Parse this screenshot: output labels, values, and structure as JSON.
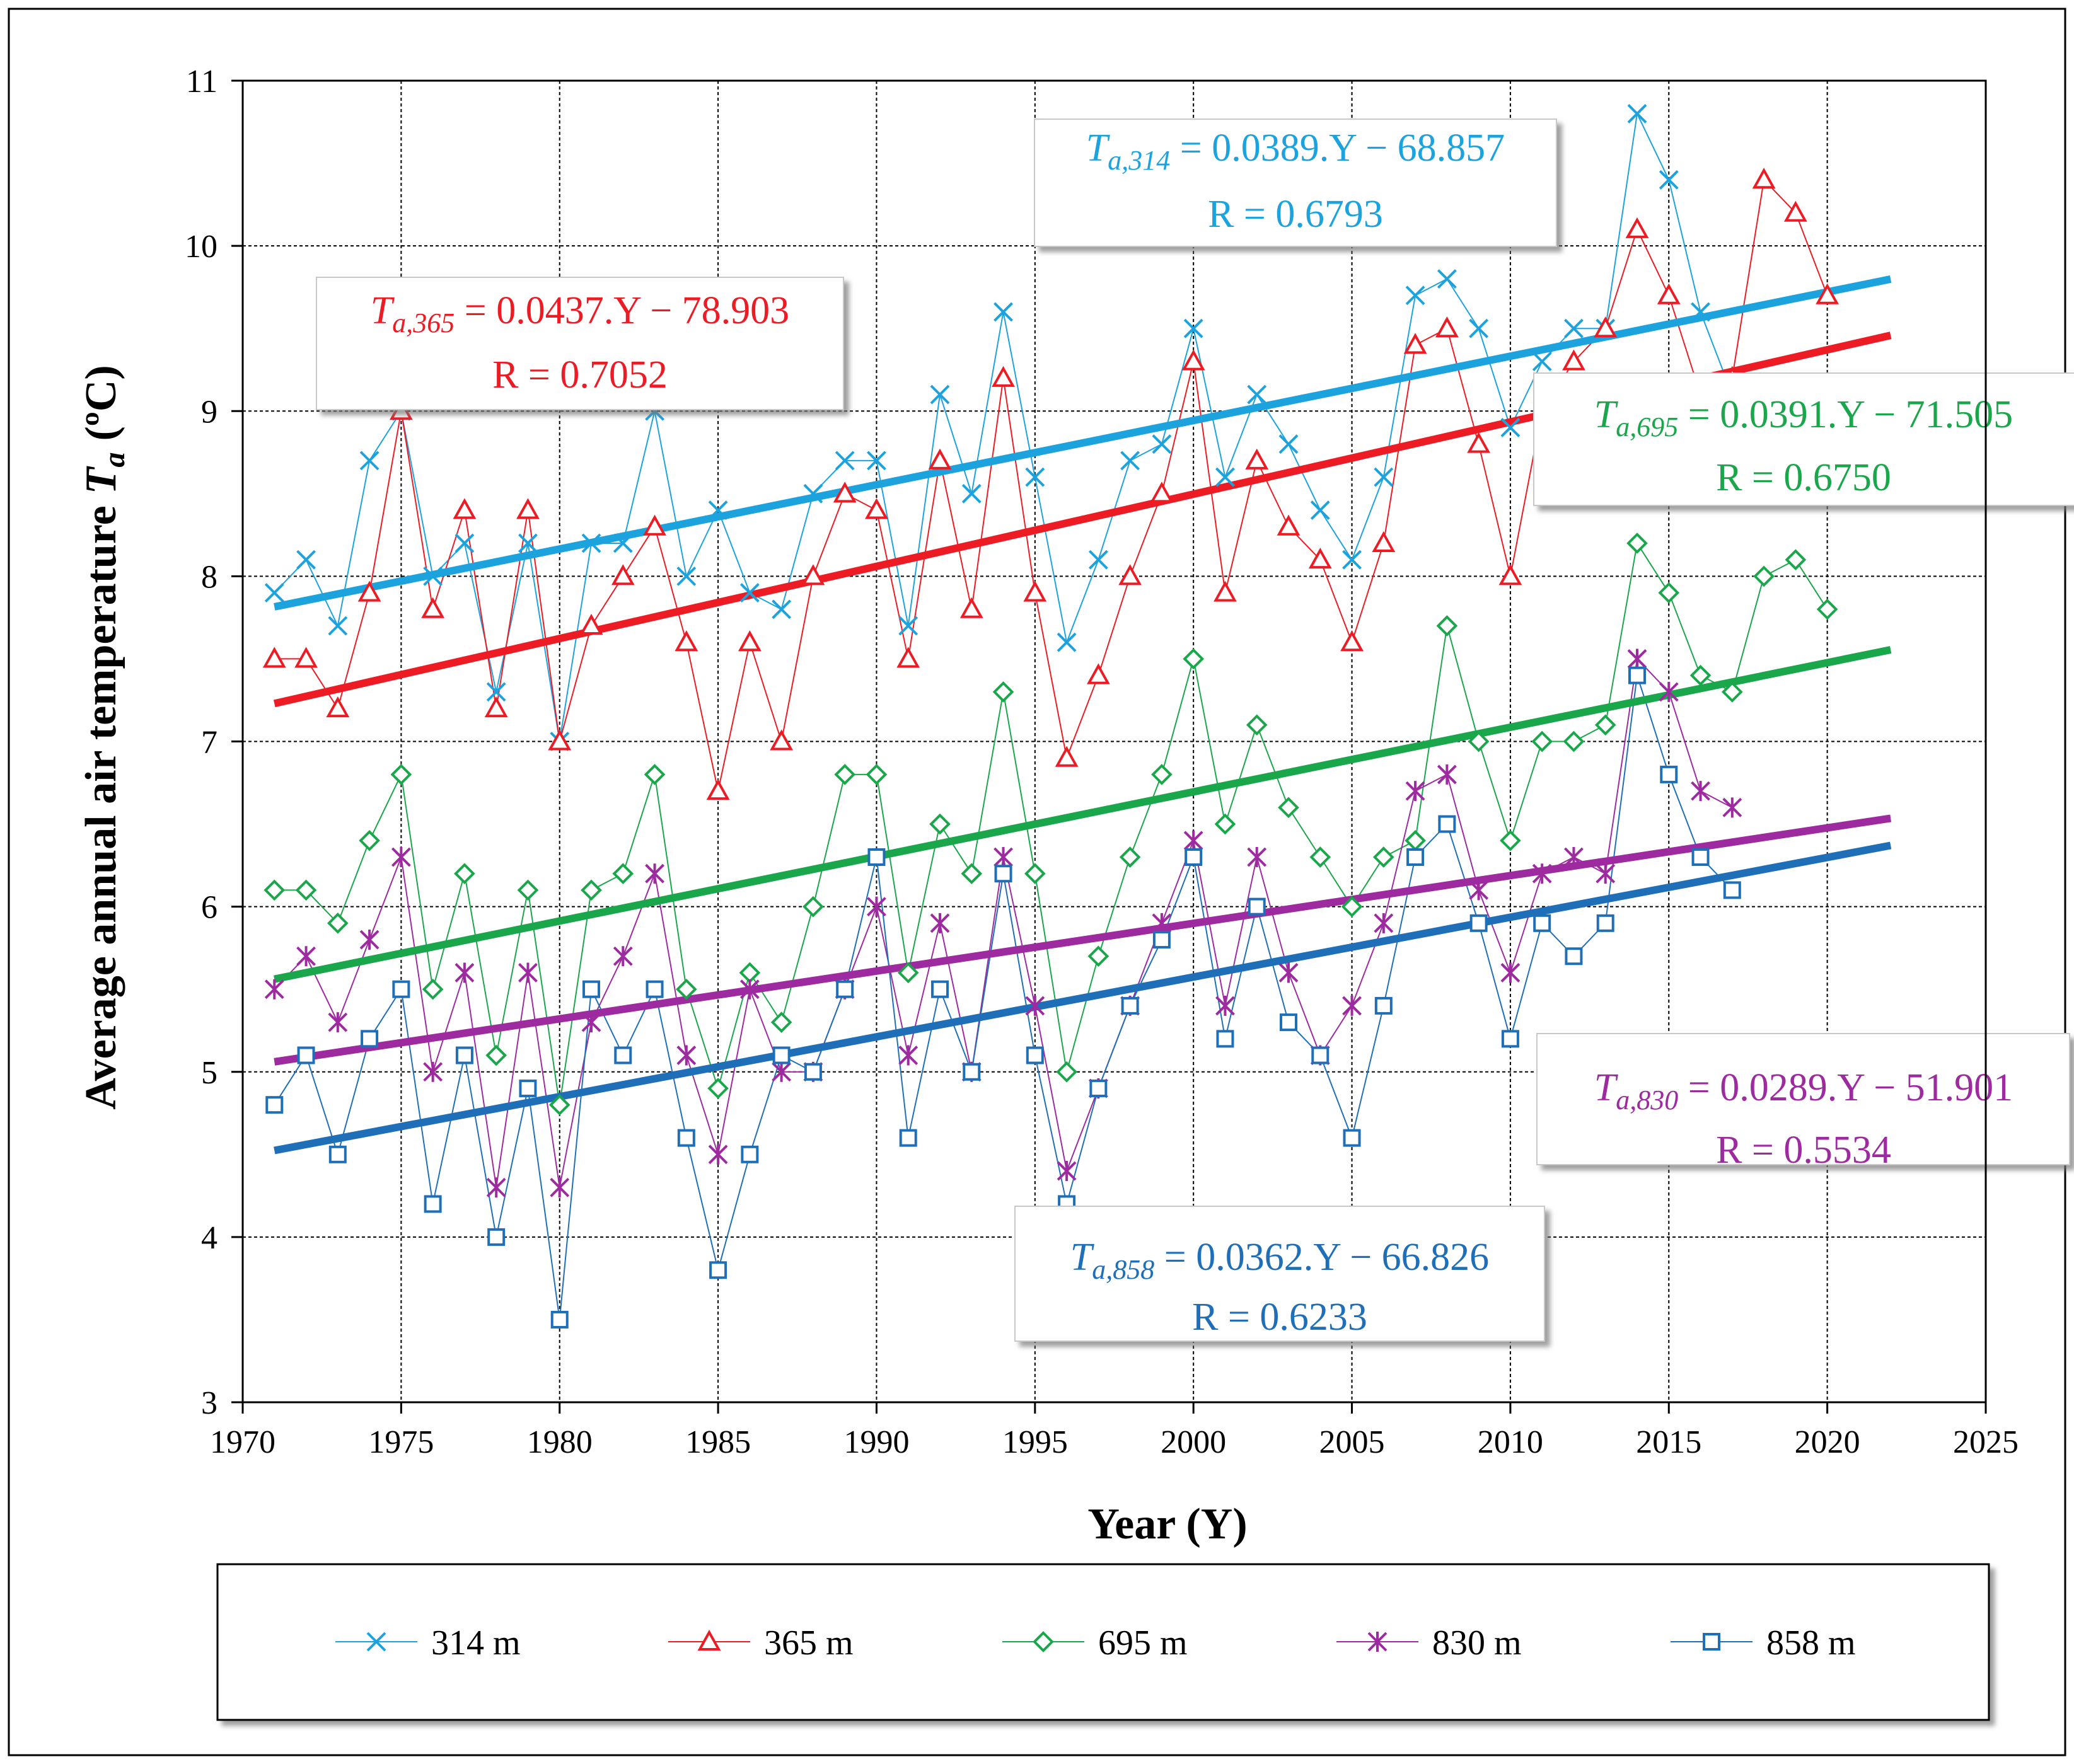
{
  "chart_data": {
    "type": "scatter",
    "title": "",
    "xlabel": "Year (Y)",
    "ylabel": "Average annual air temperature",
    "ylabel_symbol": "T",
    "ylabel_subscript": "a",
    "ylabel_unit": "(ºC)",
    "xlim": [
      1970,
      2025
    ],
    "ylim": [
      3,
      11
    ],
    "xticks": [
      1970,
      1975,
      1980,
      1985,
      1990,
      1995,
      2000,
      2005,
      2010,
      2015,
      2020,
      2025
    ],
    "yticks": [
      3,
      4,
      5,
      6,
      7,
      8,
      9,
      10,
      11
    ],
    "grid": true,
    "legend_position": "bottom",
    "series": [
      {
        "name": "314 m",
        "color": "#1ca3de",
        "marker": "x",
        "x": [
          1971,
          1972,
          1973,
          1974,
          1975,
          1976,
          1977,
          1978,
          1979,
          1980,
          1981,
          1982,
          1983,
          1984,
          1985,
          1986,
          1987,
          1988,
          1989,
          1990,
          1991,
          1992,
          1993,
          1994,
          1995,
          1996,
          1997,
          1998,
          1999,
          2000,
          2001,
          2002,
          2003,
          2004,
          2005,
          2006,
          2007,
          2008,
          2009,
          2010,
          2011,
          2012,
          2013,
          2014,
          2015,
          2016,
          2017
        ],
        "y": [
          7.9,
          8.1,
          7.7,
          8.7,
          9.0,
          8.0,
          8.2,
          7.3,
          8.2,
          7.0,
          8.2,
          8.2,
          9.0,
          8.0,
          8.4,
          7.9,
          7.8,
          8.5,
          8.7,
          8.7,
          7.7,
          9.1,
          8.5,
          9.6,
          8.6,
          7.6,
          8.1,
          8.7,
          8.8,
          9.5,
          8.6,
          9.1,
          8.8,
          8.4,
          8.1,
          8.6,
          9.7,
          9.8,
          9.5,
          8.9,
          9.3,
          9.5,
          9.5,
          10.8,
          10.4,
          9.6,
          9.1
        ],
        "trend": {
          "equation_symbol": "T",
          "equation_subscript": "a,314",
          "equation_rhs": " = 0.0389.Y − 68.857",
          "r_text": "R = 0.6793",
          "slope": 0.0389,
          "intercept": -68.857,
          "x_range": [
            1971,
            2022
          ]
        }
      },
      {
        "name": "365 m",
        "color": "#ed1c24",
        "marker": "triangle",
        "x": [
          1971,
          1972,
          1973,
          1974,
          1975,
          1976,
          1977,
          1978,
          1979,
          1980,
          1981,
          1982,
          1983,
          1984,
          1985,
          1986,
          1987,
          1988,
          1989,
          1990,
          1991,
          1992,
          1993,
          1994,
          1995,
          1996,
          1997,
          1998,
          1999,
          2000,
          2001,
          2002,
          2003,
          2004,
          2005,
          2006,
          2007,
          2008,
          2009,
          2010,
          2011,
          2012,
          2013,
          2014,
          2015,
          2016,
          2017,
          2018,
          2019,
          2020
        ],
        "y": [
          7.5,
          7.5,
          7.2,
          7.9,
          9.0,
          7.8,
          8.4,
          7.2,
          8.4,
          7.0,
          7.7,
          8.0,
          8.3,
          7.6,
          6.7,
          7.6,
          7.0,
          8.0,
          8.5,
          8.4,
          7.5,
          8.7,
          7.8,
          9.2,
          7.9,
          6.9,
          7.4,
          8.0,
          8.5,
          9.3,
          7.9,
          8.7,
          8.3,
          8.1,
          7.6,
          8.2,
          9.4,
          9.5,
          8.8,
          8.0,
          9.0,
          9.3,
          9.5,
          10.1,
          9.7,
          9.1,
          9.2,
          10.4,
          10.2,
          9.7
        ],
        "trend": {
          "equation_symbol": "T",
          "equation_subscript": "a,365",
          "equation_rhs": " = 0.0437.Y − 78.903",
          "r_text": "R = 0.7052",
          "slope": 0.0437,
          "intercept": -78.903,
          "x_range": [
            1971,
            2022
          ]
        }
      },
      {
        "name": "695 m",
        "color": "#1aa64a",
        "marker": "diamond",
        "x": [
          1971,
          1972,
          1973,
          1974,
          1975,
          1976,
          1977,
          1978,
          1979,
          1980,
          1981,
          1982,
          1983,
          1984,
          1985,
          1986,
          1987,
          1988,
          1989,
          1990,
          1991,
          1992,
          1993,
          1994,
          1995,
          1996,
          1997,
          1998,
          1999,
          2000,
          2001,
          2002,
          2003,
          2004,
          2005,
          2006,
          2007,
          2008,
          2009,
          2010,
          2011,
          2012,
          2013,
          2014,
          2015,
          2016,
          2017,
          2018,
          2019,
          2020
        ],
        "y": [
          6.1,
          6.1,
          5.9,
          6.4,
          6.8,
          5.5,
          6.2,
          5.1,
          6.1,
          4.8,
          6.1,
          6.2,
          6.8,
          5.5,
          4.9,
          5.6,
          5.3,
          6.0,
          6.8,
          6.8,
          5.6,
          6.5,
          6.2,
          7.3,
          6.2,
          5.0,
          5.7,
          6.3,
          6.8,
          7.5,
          6.5,
          7.1,
          6.6,
          6.3,
          6.0,
          6.3,
          6.4,
          7.7,
          7.0,
          6.4,
          7.0,
          7.0,
          7.1,
          8.2,
          7.9,
          7.4,
          7.3,
          8.0,
          8.1,
          7.8
        ],
        "trend": {
          "equation_symbol": "T",
          "equation_subscript": "a,695",
          "equation_rhs": " = 0.0391.Y − 71.505",
          "r_text": "R = 0.6750",
          "slope": 0.0391,
          "intercept": -71.505,
          "x_range": [
            1971,
            2022
          ]
        }
      },
      {
        "name": "830 m",
        "color": "#9e2aa0",
        "marker": "star",
        "x": [
          1971,
          1972,
          1973,
          1974,
          1975,
          1976,
          1977,
          1978,
          1979,
          1980,
          1981,
          1982,
          1983,
          1984,
          1985,
          1986,
          1987,
          1988,
          1989,
          1990,
          1991,
          1992,
          1993,
          1994,
          1995,
          1996,
          1997,
          1998,
          1999,
          2000,
          2001,
          2002,
          2003,
          2004,
          2005,
          2006,
          2007,
          2008,
          2009,
          2010,
          2011,
          2012,
          2013,
          2014,
          2015,
          2016,
          2017
        ],
        "y": [
          5.5,
          5.7,
          5.3,
          5.8,
          6.3,
          5.0,
          5.6,
          4.3,
          5.6,
          4.3,
          5.3,
          5.7,
          6.2,
          5.1,
          4.5,
          5.5,
          5.0,
          5.0,
          5.5,
          6.0,
          5.1,
          5.9,
          5.0,
          6.3,
          5.4,
          4.4,
          4.9,
          5.4,
          5.9,
          6.4,
          5.4,
          6.3,
          5.6,
          5.1,
          5.4,
          5.9,
          6.7,
          6.8,
          6.1,
          5.6,
          6.2,
          6.3,
          6.2,
          7.5,
          7.3,
          6.7,
          6.6
        ],
        "trend": {
          "equation_symbol": "T",
          "equation_subscript": "a,830",
          "equation_rhs": " = 0.0289.Y − 51.901",
          "r_text": "R = 0.5534",
          "slope": 0.0289,
          "intercept": -51.901,
          "x_range": [
            1971,
            2022
          ]
        }
      },
      {
        "name": "858 m",
        "color": "#1f6fb8",
        "marker": "square",
        "x": [
          1971,
          1972,
          1973,
          1974,
          1975,
          1976,
          1977,
          1978,
          1979,
          1980,
          1981,
          1982,
          1983,
          1984,
          1985,
          1986,
          1987,
          1988,
          1989,
          1990,
          1991,
          1992,
          1993,
          1994,
          1995,
          1996,
          1997,
          1998,
          1999,
          2000,
          2001,
          2002,
          2003,
          2004,
          2005,
          2006,
          2007,
          2008,
          2009,
          2010,
          2011,
          2012,
          2013,
          2014,
          2015,
          2016,
          2017
        ],
        "y": [
          4.8,
          5.1,
          4.5,
          5.2,
          5.5,
          4.2,
          5.1,
          4.0,
          4.9,
          3.5,
          5.5,
          5.1,
          5.5,
          4.6,
          3.8,
          4.5,
          5.1,
          5.0,
          5.5,
          6.3,
          4.6,
          5.5,
          5.0,
          6.2,
          5.1,
          4.2,
          4.9,
          5.4,
          5.8,
          6.3,
          5.2,
          6.0,
          5.3,
          5.1,
          4.6,
          5.4,
          6.3,
          6.5,
          5.9,
          5.2,
          5.9,
          5.7,
          5.9,
          7.4,
          6.8,
          6.3,
          6.1
        ],
        "trend": {
          "equation_symbol": "T",
          "equation_subscript": "a,858",
          "equation_rhs": " = 0.0362.Y − 66.826",
          "r_text": "R = 0.6233",
          "slope": 0.0362,
          "intercept": -66.826,
          "x_range": [
            1971,
            2022
          ]
        }
      }
    ]
  }
}
